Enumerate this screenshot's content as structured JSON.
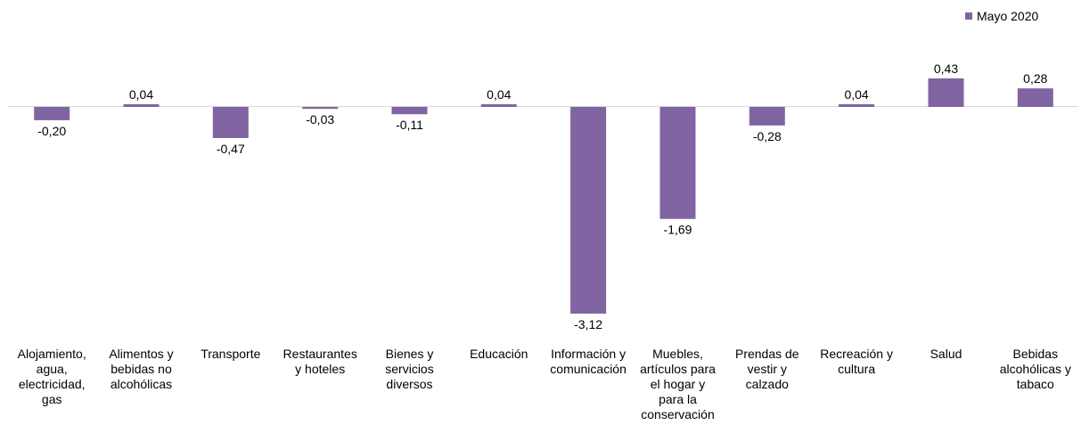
{
  "chart_data": {
    "type": "bar",
    "title": "",
    "xlabel": "",
    "ylabel": "",
    "legend_position": "top-right",
    "grid": false,
    "bar_color": "#8064A2",
    "ylim": [
      -3.12,
      0.43
    ],
    "categories": [
      [
        "Alojamiento,",
        "agua,",
        "electricidad,",
        "gas"
      ],
      [
        "Alimentos y",
        "bebidas no",
        "alcohólicas"
      ],
      [
        "Transporte"
      ],
      [
        "Restaurantes",
        "y hoteles"
      ],
      [
        "Bienes y",
        "servicios",
        "diversos"
      ],
      [
        "Educación"
      ],
      [
        "Información y",
        "comunicación"
      ],
      [
        "Muebles,",
        "artículos para",
        "el hogar y",
        "para la",
        "conservación"
      ],
      [
        "Prendas de",
        "vestir y",
        "calzado"
      ],
      [
        "Recreación y",
        "cultura"
      ],
      [
        "Salud"
      ],
      [
        "Bebidas",
        "alcohólicas y",
        "tabaco"
      ]
    ],
    "series": [
      {
        "name": "Mayo 2020",
        "values": [
          -0.2,
          0.04,
          -0.47,
          -0.03,
          -0.11,
          0.04,
          -3.12,
          -1.69,
          -0.28,
          0.04,
          0.43,
          0.28
        ],
        "labels": [
          "-0,20",
          "0,04",
          "-0,47",
          "-0,03",
          "-0,11",
          "0,04",
          "-3,12",
          "-1,69",
          "-0,28",
          "0,04",
          "0,43",
          "0,28"
        ]
      }
    ]
  }
}
